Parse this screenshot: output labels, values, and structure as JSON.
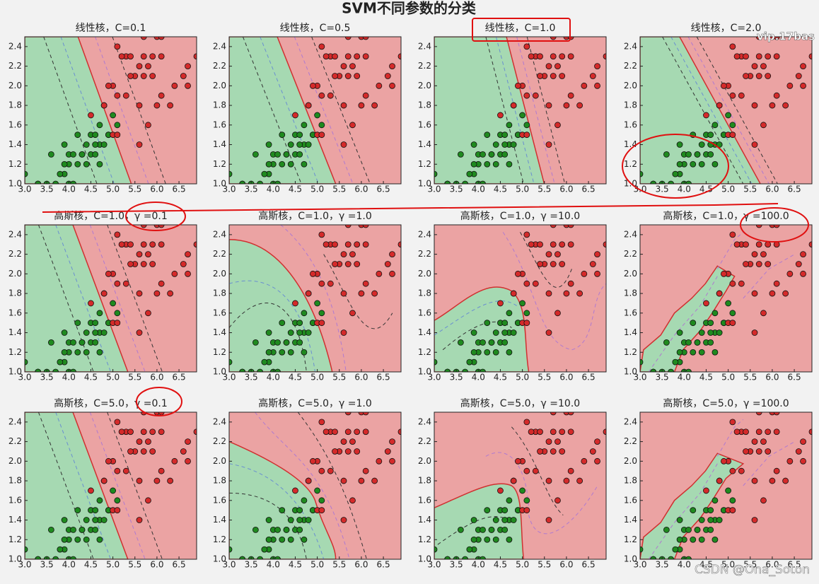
{
  "title": "SVM不同参数的分类",
  "watermarks": [
    "vip.17bas",
    "CSDN @Ona_Soton"
  ],
  "samples": {
    "series": [
      {
        "color": "#1f8a1f",
        "x": [
          4.7,
          4.5,
          4.9,
          4.0,
          4.6,
          4.5,
          4.7,
          3.3,
          4.6,
          3.9,
          3.5,
          4.2,
          4.0,
          3.6,
          4.4,
          4.1,
          3.9,
          4.8,
          4.3,
          5.0,
          3.8,
          3.7,
          5.1,
          4.4,
          4.1,
          4.6,
          3.0,
          4.2,
          4.3,
          3.3,
          4.9,
          4.8,
          4.0,
          3.9,
          4.7
        ],
        "y": [
          1.4,
          1.5,
          1.5,
          1.3,
          1.5,
          1.3,
          1.6,
          1.0,
          1.3,
          1.4,
          1.0,
          1.5,
          1.0,
          1.3,
          1.4,
          1.0,
          1.1,
          1.8,
          1.3,
          1.7,
          1.1,
          1.0,
          1.6,
          1.2,
          1.3,
          1.4,
          1.1,
          1.2,
          1.3,
          1.0,
          1.5,
          1.4,
          1.2,
          1.2,
          1.2
        ]
      },
      {
        "color": "#d42a2a",
        "x": [
          6.0,
          5.1,
          5.9,
          5.6,
          5.8,
          6.6,
          4.5,
          6.3,
          6.1,
          5.3,
          5.5,
          5.0,
          5.1,
          5.3,
          6.7,
          6.9,
          5.0,
          5.7,
          4.9,
          6.7,
          5.7,
          6.0,
          4.8,
          5.8,
          6.1,
          6.4,
          5.6,
          5.1,
          5.6,
          6.1,
          5.4,
          5.9,
          5.7,
          5.2,
          5.4
        ],
        "y": [
          2.5,
          1.9,
          2.1,
          1.8,
          2.2,
          2.1,
          1.7,
          1.8,
          2.5,
          1.9,
          2.1,
          2.0,
          2.4,
          2.3,
          2.2,
          2.3,
          1.5,
          2.3,
          2.0,
          2.0,
          2.1,
          1.8,
          1.8,
          1.6,
          1.9,
          2.0,
          2.2,
          1.5,
          1.4,
          2.3,
          2.1,
          2.3,
          2.5,
          2.3,
          2.3
        ]
      }
    ]
  },
  "chart_data": [
    {
      "type": "scatter",
      "title": "线性核，C=0.1",
      "xlim": [
        3.0,
        6.9
      ],
      "ylim": [
        1.0,
        2.5
      ],
      "xticks": [
        {
          "value": 3,
          "label": "3.0"
        },
        3.5,
        {
          "value": 4,
          "label": "4.0"
        },
        4.5,
        {
          "value": 5,
          "label": "5.0"
        },
        5.5,
        {
          "value": 6,
          "label": "6.0"
        },
        6.5
      ],
      "yticks": [
        {
          "value": 1,
          "label": "1.0"
        },
        1.2,
        1.4,
        1.6,
        1.8,
        {
          "value": 2,
          "label": "2.0"
        },
        2.2,
        2.4
      ]
    },
    {
      "type": "scatter",
      "title": "线性核，C=0.5",
      "xlim": [
        3.0,
        6.9
      ],
      "ylim": [
        1.0,
        2.5
      ],
      "xticks": [
        {
          "value": 3,
          "label": "3.0"
        },
        3.5,
        {
          "value": 4,
          "label": "4.0"
        },
        4.5,
        {
          "value": 5,
          "label": "5.0"
        },
        5.5,
        {
          "value": 6,
          "label": "6.0"
        },
        6.5
      ],
      "yticks": [
        {
          "value": 1,
          "label": "1.0"
        },
        1.2,
        1.4,
        1.6,
        1.8,
        {
          "value": 2,
          "label": "2.0"
        },
        2.2,
        2.4
      ]
    },
    {
      "type": "scatter",
      "title": "线性核，C=1.0",
      "xlim": [
        3.0,
        6.9
      ],
      "ylim": [
        1.0,
        2.5
      ],
      "xticks": [
        {
          "value": 3,
          "label": "3.0"
        },
        3.5,
        {
          "value": 4,
          "label": "4.0"
        },
        4.5,
        {
          "value": 5,
          "label": "5.0"
        },
        5.5,
        {
          "value": 6,
          "label": "6.0"
        },
        6.5
      ],
      "yticks": [
        {
          "value": 1,
          "label": "1.0"
        },
        1.2,
        1.4,
        1.6,
        1.8,
        {
          "value": 2,
          "label": "2.0"
        },
        2.2,
        2.4
      ]
    },
    {
      "type": "scatter",
      "title": "线性核，C=2.0",
      "xlim": [
        3.0,
        6.9
      ],
      "ylim": [
        1.0,
        2.5
      ],
      "xticks": [
        {
          "value": 3,
          "label": "3.0"
        },
        3.5,
        {
          "value": 4,
          "label": "4.0"
        },
        4.5,
        {
          "value": 5,
          "label": "5.0"
        },
        5.5,
        {
          "value": 6,
          "label": "6.0"
        },
        6.5
      ],
      "yticks": [
        {
          "value": 1,
          "label": "1.0"
        },
        1.2,
        1.4,
        1.6,
        1.8,
        {
          "value": 2,
          "label": "2.0"
        },
        2.2,
        2.4
      ]
    },
    {
      "type": "scatter",
      "title": "高斯核，C=1.0，γ =0.1",
      "xlim": [
        3.0,
        6.9
      ],
      "ylim": [
        1.0,
        2.5
      ],
      "xticks": [
        {
          "value": 3,
          "label": "3.0"
        },
        3.5,
        {
          "value": 4,
          "label": "4.0"
        },
        4.5,
        {
          "value": 5,
          "label": "5.0"
        },
        5.5,
        {
          "value": 6,
          "label": "6.0"
        },
        6.5
      ],
      "yticks": [
        {
          "value": 1,
          "label": "1.0"
        },
        1.2,
        1.4,
        1.6,
        1.8,
        {
          "value": 2,
          "label": "2.0"
        },
        2.2,
        2.4
      ]
    },
    {
      "type": "scatter",
      "title": "高斯核，C=1.0，γ =1.0",
      "xlim": [
        3.0,
        6.9
      ],
      "ylim": [
        1.0,
        2.5
      ],
      "xticks": [
        {
          "value": 3,
          "label": "3.0"
        },
        3.5,
        {
          "value": 4,
          "label": "4.0"
        },
        4.5,
        {
          "value": 5,
          "label": "5.0"
        },
        5.5,
        {
          "value": 6,
          "label": "6.0"
        },
        6.5
      ],
      "yticks": [
        {
          "value": 1,
          "label": "1.0"
        },
        1.2,
        1.4,
        1.6,
        1.8,
        {
          "value": 2,
          "label": "2.0"
        },
        2.2,
        2.4
      ]
    },
    {
      "type": "scatter",
      "title": "高斯核，C=1.0，γ =10.0",
      "xlim": [
        3.0,
        6.9
      ],
      "ylim": [
        1.0,
        2.5
      ],
      "xticks": [
        {
          "value": 3,
          "label": "3.0"
        },
        3.5,
        {
          "value": 4,
          "label": "4.0"
        },
        4.5,
        {
          "value": 5,
          "label": "5.0"
        },
        5.5,
        {
          "value": 6,
          "label": "6.0"
        },
        6.5
      ],
      "yticks": [
        {
          "value": 1,
          "label": "1.0"
        },
        1.2,
        1.4,
        1.6,
        1.8,
        {
          "value": 2,
          "label": "2.0"
        },
        2.2,
        2.4
      ]
    },
    {
      "type": "scatter",
      "title": "高斯核，C=1.0，γ =100.0",
      "xlim": [
        3.0,
        6.9
      ],
      "ylim": [
        1.0,
        2.5
      ],
      "xticks": [
        {
          "value": 3,
          "label": "3.0"
        },
        3.5,
        {
          "value": 4,
          "label": "4.0"
        },
        4.5,
        {
          "value": 5,
          "label": "5.0"
        },
        5.5,
        {
          "value": 6,
          "label": "6.0"
        },
        6.5
      ],
      "yticks": [
        {
          "value": 1,
          "label": "1.0"
        },
        1.2,
        1.4,
        1.6,
        1.8,
        {
          "value": 2,
          "label": "2.0"
        },
        2.2,
        2.4
      ]
    },
    {
      "type": "scatter",
      "title": "高斯核，C=5.0，γ =0.1",
      "xlim": [
        3.0,
        6.9
      ],
      "ylim": [
        1.0,
        2.5
      ],
      "xticks": [
        {
          "value": 3,
          "label": "3.0"
        },
        3.5,
        {
          "value": 4,
          "label": "4.0"
        },
        4.5,
        {
          "value": 5,
          "label": "5.0"
        },
        5.5,
        {
          "value": 6,
          "label": "6.0"
        },
        6.5
      ],
      "yticks": [
        {
          "value": 1,
          "label": "1.0"
        },
        1.2,
        1.4,
        1.6,
        1.8,
        {
          "value": 2,
          "label": "2.0"
        },
        2.2,
        2.4
      ]
    },
    {
      "type": "scatter",
      "title": "高斯核，C=5.0，γ =1.0",
      "xlim": [
        3.0,
        6.9
      ],
      "ylim": [
        1.0,
        2.5
      ],
      "xticks": [
        {
          "value": 3,
          "label": "3.0"
        },
        3.5,
        {
          "value": 4,
          "label": "4.0"
        },
        4.5,
        {
          "value": 5,
          "label": "5.0"
        },
        5.5,
        {
          "value": 6,
          "label": "6.0"
        },
        6.5
      ],
      "yticks": [
        {
          "value": 1,
          "label": "1.0"
        },
        1.2,
        1.4,
        1.6,
        1.8,
        {
          "value": 2,
          "label": "2.0"
        },
        2.2,
        2.4
      ]
    },
    {
      "type": "scatter",
      "title": "高斯核，C=5.0，γ =10.0",
      "xlim": [
        3.0,
        6.9
      ],
      "ylim": [
        1.0,
        2.5
      ],
      "xticks": [
        {
          "value": 3,
          "label": "3.0"
        },
        3.5,
        {
          "value": 4,
          "label": "4.0"
        },
        4.5,
        {
          "value": 5,
          "label": "5.0"
        },
        5.5,
        {
          "value": 6,
          "label": "6.0"
        },
        6.5
      ],
      "yticks": [
        {
          "value": 1,
          "label": "1.0"
        },
        1.2,
        1.4,
        1.6,
        1.8,
        {
          "value": 2,
          "label": "2.0"
        },
        2.2,
        2.4
      ]
    },
    {
      "type": "scatter",
      "title": "高斯核，C=5.0，γ =100.0",
      "xlim": [
        3.0,
        6.9
      ],
      "ylim": [
        1.0,
        2.5
      ],
      "xticks": [
        {
          "value": 3,
          "label": "3.0"
        },
        3.5,
        {
          "value": 4,
          "label": "4.0"
        },
        4.5,
        {
          "value": 5,
          "label": "5.0"
        },
        5.5,
        {
          "value": 6,
          "label": "6.0"
        },
        6.5
      ],
      "yticks": [
        {
          "value": 1,
          "label": "1.0"
        },
        1.2,
        1.4,
        1.6,
        1.8,
        {
          "value": 2,
          "label": "2.0"
        },
        2.2,
        2.4
      ]
    }
  ]
}
